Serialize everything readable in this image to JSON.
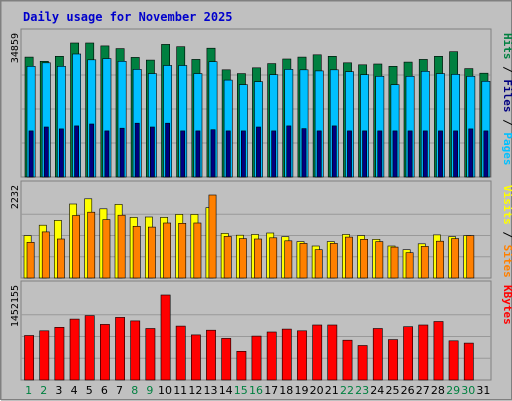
{
  "title": "Daily usage for November 2025",
  "colors": {
    "background": "#c0c0c0",
    "pages": "#000080",
    "files": "#00c0ff",
    "hits": "#008040",
    "sites": "#ff8000",
    "visits": "#ffff00",
    "kbytes": "#ff0000",
    "weekday_label": "#000000",
    "weekend_label": "#008040",
    "separator": "#000000"
  },
  "chart_data": [
    {
      "type": "bar",
      "panel": "hits-files-pages",
      "side_labels": [
        "Pages",
        "Files",
        "Hits"
      ],
      "max_label": "34859",
      "ylim": [
        0,
        34859
      ],
      "categories": [
        "1",
        "2",
        "3",
        "4",
        "5",
        "6",
        "7",
        "8",
        "9",
        "10",
        "11",
        "12",
        "13",
        "14",
        "15",
        "16",
        "17",
        "18",
        "19",
        "20",
        "21",
        "22",
        "23",
        "24",
        "25",
        "26",
        "27",
        "28",
        "29",
        "30",
        "31"
      ],
      "series": [
        {
          "name": "Hits",
          "values": [
            31200,
            30100,
            31400,
            34859,
            34859,
            34100,
            33400,
            31100,
            30400,
            34500,
            33900,
            30600,
            33500,
            27900,
            26900,
            28400,
            29500,
            30700,
            31200,
            31800,
            31400,
            29700,
            29200,
            29400,
            28800,
            29900,
            30600,
            31400,
            32600,
            28200,
            27000
          ]
        },
        {
          "name": "Files",
          "values": [
            28800,
            29700,
            28800,
            32000,
            30500,
            30800,
            30100,
            28000,
            26900,
            29000,
            29000,
            26900,
            30000,
            25200,
            24000,
            24800,
            26600,
            28000,
            27900,
            27600,
            27900,
            27400,
            26600,
            26200,
            24000,
            26200,
            27500,
            26900,
            26700,
            26200,
            24900
          ]
        },
        {
          "name": "Pages",
          "values": [
            12000,
            13000,
            12500,
            13300,
            13800,
            12000,
            12700,
            14000,
            13000,
            14000,
            12000,
            12000,
            12300,
            12000,
            12000,
            13000,
            12000,
            13300,
            12600,
            12000,
            13300,
            12000,
            12000,
            12000,
            12000,
            12000,
            12000,
            12000,
            12000,
            12500,
            12000
          ]
        }
      ]
    },
    {
      "type": "bar",
      "panel": "visits-sites",
      "side_labels": [
        "Sites",
        "Visits"
      ],
      "max_label": "2232",
      "ylim": [
        0,
        2232
      ],
      "categories": [
        "1",
        "2",
        "3",
        "4",
        "5",
        "6",
        "7",
        "8",
        "9",
        "10",
        "11",
        "12",
        "13",
        "14",
        "15",
        "16",
        "17",
        "18",
        "19",
        "20",
        "21",
        "22",
        "23",
        "24",
        "25",
        "26",
        "27",
        "28",
        "29",
        "30",
        "31"
      ],
      "series": [
        {
          "name": "Visits",
          "values": [
            1140,
            1420,
            1550,
            1990,
            2130,
            1860,
            1980,
            1630,
            1640,
            1630,
            1710,
            1710,
            1890,
            1200,
            1150,
            1170,
            1210,
            1110,
            980,
            860,
            980,
            1170,
            1140,
            1040,
            860,
            760,
            920,
            1160,
            1110,
            1140,
            0
          ]
        },
        {
          "name": "Sites",
          "values": [
            960,
            1240,
            1050,
            1680,
            1770,
            1570,
            1690,
            1390,
            1370,
            1480,
            1470,
            1480,
            2232,
            1120,
            1060,
            1050,
            1080,
            1000,
            930,
            760,
            930,
            1100,
            1040,
            980,
            830,
            680,
            850,
            990,
            1060,
            1140,
            0
          ]
        }
      ]
    },
    {
      "type": "bar",
      "panel": "kbytes",
      "side_labels": [
        "KBytes"
      ],
      "max_label": "1452155",
      "ylim": [
        0,
        1452155
      ],
      "categories": [
        "1",
        "2",
        "3",
        "4",
        "5",
        "6",
        "7",
        "8",
        "9",
        "10",
        "11",
        "12",
        "13",
        "14",
        "15",
        "16",
        "17",
        "18",
        "19",
        "20",
        "21",
        "22",
        "23",
        "24",
        "25",
        "26",
        "27",
        "28",
        "29",
        "30",
        "31"
      ],
      "series": [
        {
          "name": "KBytes",
          "values": [
            760000,
            840000,
            900000,
            1040000,
            1100000,
            950000,
            1070000,
            1010000,
            880000,
            1452155,
            920000,
            770000,
            850000,
            710000,
            490000,
            750000,
            820000,
            870000,
            840000,
            940000,
            940000,
            680000,
            590000,
            880000,
            690000,
            910000,
            940000,
            1000000,
            670000,
            630000,
            0
          ]
        }
      ]
    }
  ]
}
